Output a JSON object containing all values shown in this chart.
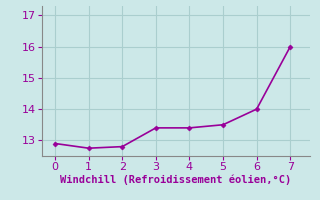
{
  "x": [
    0,
    1,
    2,
    3,
    4,
    5,
    6,
    7
  ],
  "y": [
    12.9,
    12.75,
    12.8,
    13.4,
    13.4,
    13.5,
    14.0,
    16.0
  ],
  "line_color": "#990099",
  "marker": "D",
  "marker_size": 2.5,
  "background_color": "#cce8e8",
  "grid_color": "#aacece",
  "xlabel": "Windchill (Refroidissement éolien,°C)",
  "xlabel_color": "#990099",
  "xlabel_fontsize": 7.5,
  "tick_color": "#990099",
  "tick_fontsize": 8,
  "ylim": [
    12.5,
    17.3
  ],
  "xlim": [
    -0.4,
    7.6
  ],
  "yticks": [
    13,
    14,
    15,
    16,
    17
  ],
  "xticks": [
    0,
    1,
    2,
    3,
    4,
    5,
    6,
    7
  ],
  "spine_color": "#888888",
  "line_width": 1.2
}
